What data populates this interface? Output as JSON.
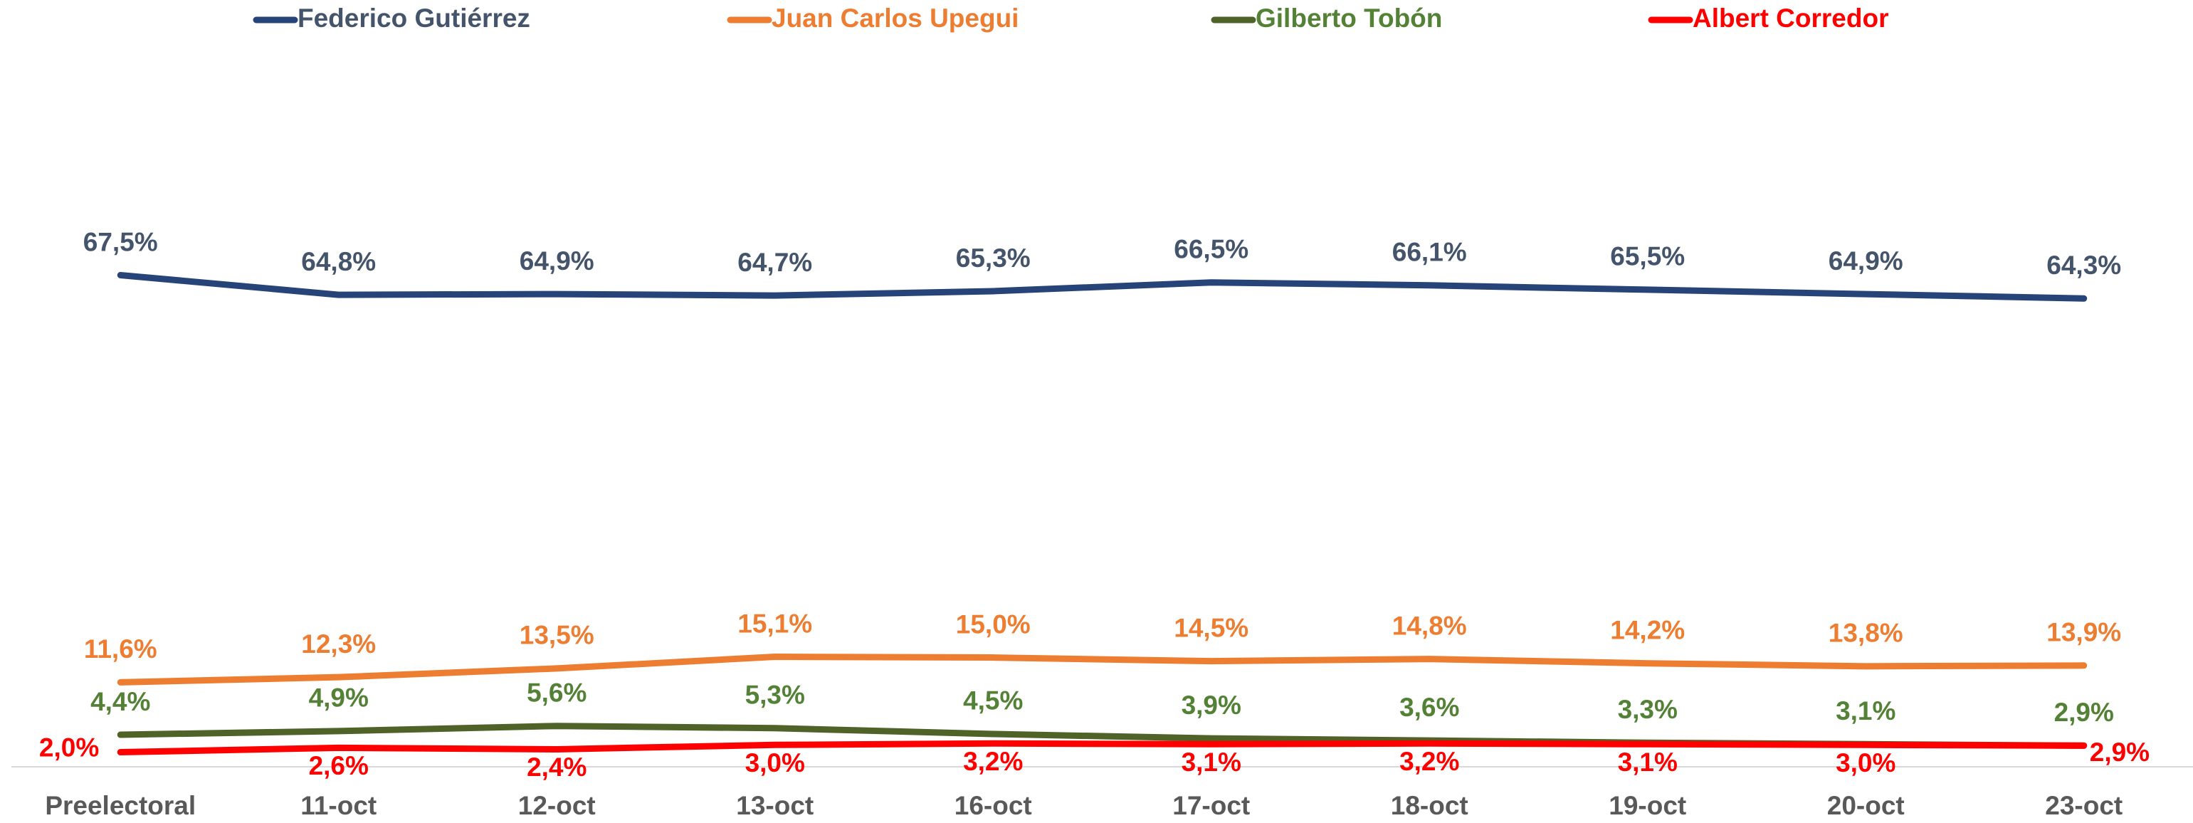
{
  "chart_data": {
    "type": "line",
    "categories": [
      "Preelectoral",
      "11-oct",
      "12-oct",
      "13-oct",
      "16-oct",
      "17-oct",
      "18-oct",
      "19-oct",
      "20-oct",
      "23-oct"
    ],
    "series": [
      {
        "name": "Federico Gutiérrez",
        "color": "#264478",
        "label_color": "#44546A",
        "values": [
          67.5,
          64.8,
          64.9,
          64.7,
          65.3,
          66.5,
          66.1,
          65.5,
          64.9,
          64.3
        ],
        "value_labels": [
          "67,5%",
          "64,8%",
          "64,9%",
          "64,7%",
          "65,3%",
          "66,5%",
          "66,1%",
          "65,5%",
          "64,9%",
          "64,3%"
        ]
      },
      {
        "name": "Juan Carlos Upegui",
        "color": "#ED7D31",
        "label_color": "#ED7D31",
        "values": [
          11.6,
          12.3,
          13.5,
          15.1,
          15.0,
          14.5,
          14.8,
          14.2,
          13.8,
          13.9
        ],
        "value_labels": [
          "11,6%",
          "12,3%",
          "13,5%",
          "15,1%",
          "15,0%",
          "14,5%",
          "14,8%",
          "14,2%",
          "13,8%",
          "13,9%"
        ]
      },
      {
        "name": "Gilberto Tobón",
        "color": "#4F6228",
        "label_color": "#538135",
        "values": [
          4.4,
          4.9,
          5.6,
          5.3,
          4.5,
          3.9,
          3.6,
          3.3,
          3.1,
          2.9
        ],
        "value_labels": [
          "4,4%",
          "4,9%",
          "5,6%",
          "5,3%",
          "4,5%",
          "3,9%",
          "3,6%",
          "3,3%",
          "3,1%",
          "2,9%"
        ]
      },
      {
        "name": "Albert Corredor",
        "color": "#FF0000",
        "label_color": "#FF0000",
        "values": [
          2.0,
          2.6,
          2.4,
          3.0,
          3.2,
          3.1,
          3.2,
          3.1,
          3.0,
          2.9
        ],
        "value_labels": [
          "2,0%",
          "2,6%",
          "2,4%",
          "3,0%",
          "3,2%",
          "3,1%",
          "3,2%",
          "3,1%",
          "3,0%",
          "2,9%"
        ]
      }
    ],
    "ylim": [
      0,
      100
    ]
  }
}
